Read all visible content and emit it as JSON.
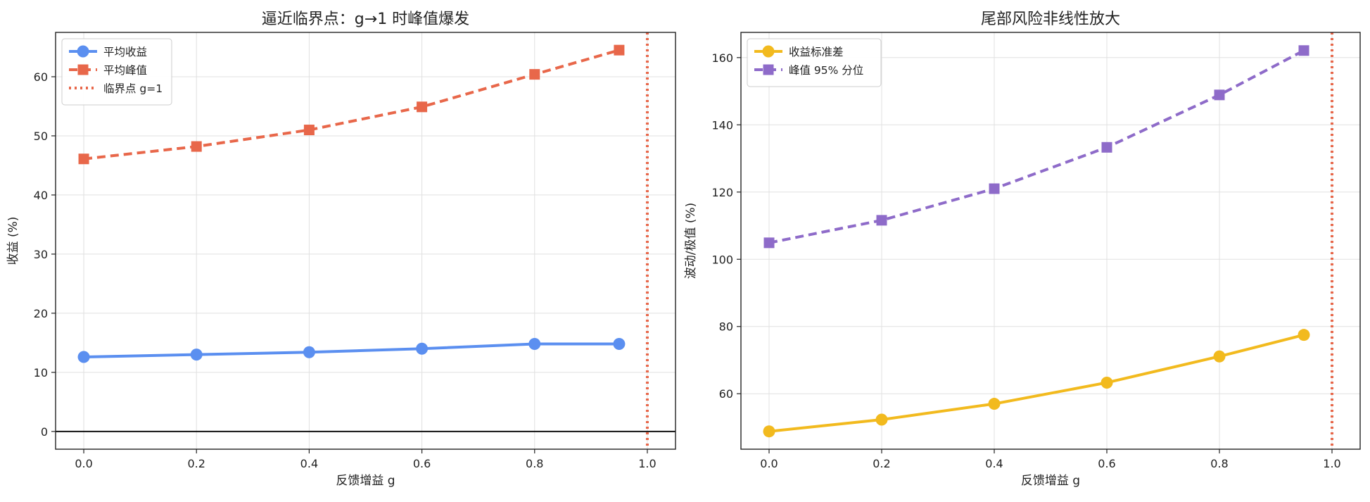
{
  "chart_data": [
    {
      "type": "line",
      "title": "逼近临界点：g→1 时峰值爆发",
      "xlabel": "反馈增益 g",
      "ylabel": "收益 (%)",
      "x": [
        0.0,
        0.2,
        0.4,
        0.6,
        0.8,
        0.95
      ],
      "xlim": [
        -0.05,
        1.05
      ],
      "ylim": [
        -3,
        67.5
      ],
      "xticks": [
        0.0,
        0.2,
        0.4,
        0.6,
        0.8,
        1.0
      ],
      "xtick_labels": [
        "0.0",
        "0.2",
        "0.4",
        "0.6",
        "0.8",
        "1.0"
      ],
      "yticks": [
        0,
        10,
        20,
        30,
        40,
        50,
        60
      ],
      "ytick_labels": [
        "0",
        "10",
        "20",
        "30",
        "40",
        "50",
        "60"
      ],
      "grid": true,
      "legend_position": "top-left",
      "series": [
        {
          "name": "平均收益",
          "values": [
            12.6,
            13.0,
            13.4,
            14.0,
            14.8,
            14.8
          ],
          "color": "#5B8FF0",
          "marker": "circle",
          "line": "solid"
        },
        {
          "name": "平均峰值",
          "values": [
            46.1,
            48.2,
            51.0,
            54.9,
            60.4,
            64.5
          ],
          "color": "#E8674A",
          "marker": "square",
          "line": "dashed"
        }
      ],
      "reference_lines": [
        {
          "name": "临界点 g=1",
          "axis": "x",
          "value": 1.0,
          "color": "#E8674A",
          "line": "dotted"
        },
        {
          "name": "",
          "axis": "y",
          "value": 0,
          "color": "#000000",
          "line": "solid"
        }
      ]
    },
    {
      "type": "line",
      "title": "尾部风险非线性放大",
      "xlabel": "反馈增益 g",
      "ylabel": "波动/极值 (%)",
      "x": [
        0.0,
        0.2,
        0.4,
        0.6,
        0.8,
        0.95
      ],
      "xlim": [
        -0.05,
        1.05
      ],
      "ylim": [
        43.5,
        167.5
      ],
      "xticks": [
        0.0,
        0.2,
        0.4,
        0.6,
        0.8,
        1.0
      ],
      "xtick_labels": [
        "0.0",
        "0.2",
        "0.4",
        "0.6",
        "0.8",
        "1.0"
      ],
      "yticks": [
        60,
        80,
        100,
        120,
        140,
        160
      ],
      "ytick_labels": [
        "60",
        "80",
        "100",
        "120",
        "140",
        "160"
      ],
      "grid": true,
      "legend_position": "top-left",
      "series": [
        {
          "name": "收益标准差",
          "values": [
            48.8,
            52.3,
            57.0,
            63.3,
            71.1,
            77.5
          ],
          "color": "#F2BA1E",
          "marker": "circle",
          "line": "solid"
        },
        {
          "name": "峰值 95% 分位",
          "values": [
            104.9,
            111.6,
            121.0,
            133.3,
            148.9,
            162.1
          ],
          "color": "#8E6BC9",
          "marker": "square",
          "line": "dashed"
        }
      ],
      "reference_lines": [
        {
          "name": "",
          "axis": "x",
          "value": 1.0,
          "color": "#E8674A",
          "line": "dotted"
        }
      ]
    }
  ]
}
